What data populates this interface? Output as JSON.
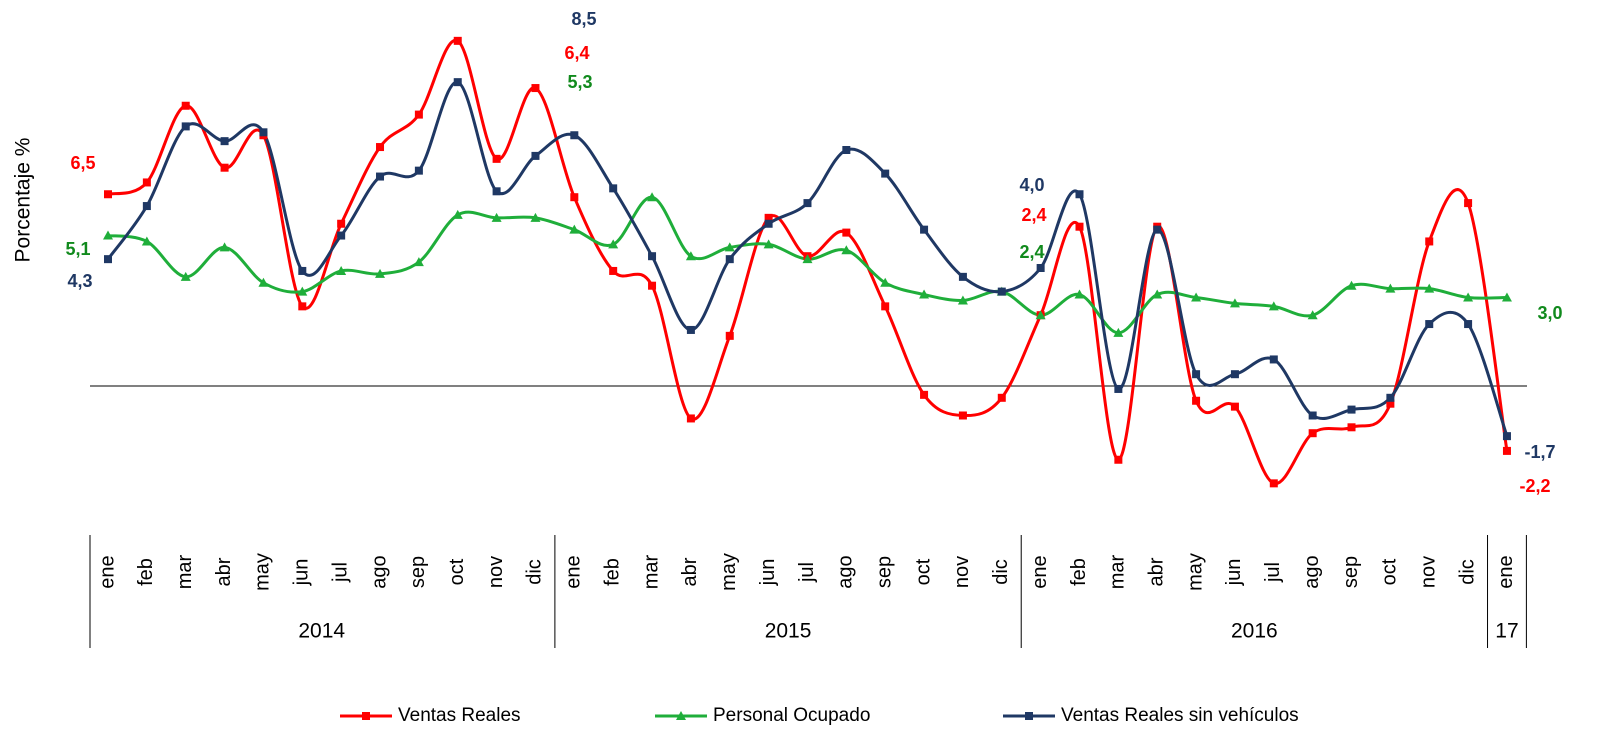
{
  "chart_data": {
    "type": "line",
    "y_label": "Porcentaje %",
    "categories": [
      "ene",
      "feb",
      "mar",
      "abr",
      "may",
      "jun",
      "jul",
      "ago",
      "sep",
      "oct",
      "nov",
      "dic",
      "ene",
      "feb",
      "mar",
      "abr",
      "may",
      "jun",
      "jul",
      "ago",
      "sep",
      "oct",
      "nov",
      "dic",
      "ene",
      "feb",
      "mar",
      "abr",
      "may",
      "jun",
      "jul",
      "ago",
      "sep",
      "oct",
      "nov",
      "dic",
      "ene"
    ],
    "year_groups": [
      {
        "label": "2014",
        "count": 12
      },
      {
        "label": "2015",
        "count": 12
      },
      {
        "label": "2016",
        "count": 12
      },
      {
        "label": "17",
        "count": 1
      }
    ],
    "ylim": [
      -4,
      12
    ],
    "zero_line": true,
    "legend": "bottom",
    "series": [
      {
        "name": "Ventas Reales",
        "color": "#ff0000",
        "marker": "square",
        "values": [
          6.5,
          6.9,
          9.5,
          7.4,
          8.5,
          2.7,
          5.5,
          8.1,
          9.2,
          11.7,
          7.7,
          10.1,
          6.4,
          3.9,
          3.4,
          -1.1,
          1.7,
          5.7,
          4.4,
          5.2,
          2.7,
          -0.3,
          -1.0,
          -0.4,
          2.4,
          5.4,
          -2.5,
          5.4,
          -0.5,
          -0.7,
          -3.3,
          -1.6,
          -1.4,
          -0.6,
          4.9,
          6.2,
          -2.2
        ],
        "value_labels": [
          "6,5",
          null,
          null,
          null,
          null,
          null,
          null,
          null,
          null,
          null,
          null,
          null,
          "6,4",
          null,
          null,
          null,
          null,
          null,
          null,
          null,
          null,
          null,
          null,
          null,
          "2,4",
          null,
          null,
          null,
          null,
          null,
          null,
          null,
          null,
          null,
          null,
          null,
          "-2,2"
        ]
      },
      {
        "name": "Personal Ocupado",
        "color": "#1fae3a",
        "label_color": "#118a1d",
        "marker": "triangle",
        "values": [
          5.1,
          4.9,
          3.7,
          4.7,
          3.5,
          3.2,
          3.9,
          3.8,
          4.2,
          5.8,
          5.7,
          5.7,
          5.3,
          4.8,
          6.4,
          4.4,
          4.7,
          4.8,
          4.3,
          4.6,
          3.5,
          3.1,
          2.9,
          3.2,
          2.4,
          3.1,
          1.8,
          3.1,
          3.0,
          2.8,
          2.7,
          2.4,
          3.4,
          3.3,
          3.3,
          3.0,
          3.0
        ],
        "value_labels": [
          "5,1",
          null,
          null,
          null,
          null,
          null,
          null,
          null,
          null,
          null,
          null,
          null,
          "5,3",
          null,
          null,
          null,
          null,
          null,
          null,
          null,
          null,
          null,
          null,
          null,
          "2,4",
          null,
          null,
          null,
          null,
          null,
          null,
          null,
          null,
          null,
          null,
          null,
          "3,0"
        ]
      },
      {
        "name": "Ventas Reales sin  vehículos",
        "color": "#1f3864",
        "marker": "square",
        "values": [
          4.3,
          6.1,
          8.8,
          8.3,
          8.6,
          3.9,
          5.1,
          7.1,
          7.3,
          10.3,
          6.6,
          7.8,
          8.5,
          6.7,
          4.4,
          1.9,
          4.3,
          5.5,
          6.2,
          8.0,
          7.2,
          5.3,
          3.7,
          3.2,
          4.0,
          6.5,
          -0.1,
          5.3,
          0.4,
          0.4,
          0.9,
          -1.0,
          -0.8,
          -0.4,
          2.1,
          2.1,
          -1.7
        ],
        "value_labels": [
          "4,3",
          null,
          null,
          null,
          null,
          null,
          null,
          null,
          null,
          null,
          null,
          null,
          "8,5",
          null,
          null,
          null,
          null,
          null,
          null,
          null,
          null,
          null,
          null,
          null,
          "4,0",
          null,
          null,
          null,
          null,
          null,
          null,
          null,
          null,
          null,
          null,
          null,
          "-1,7"
        ]
      }
    ]
  }
}
